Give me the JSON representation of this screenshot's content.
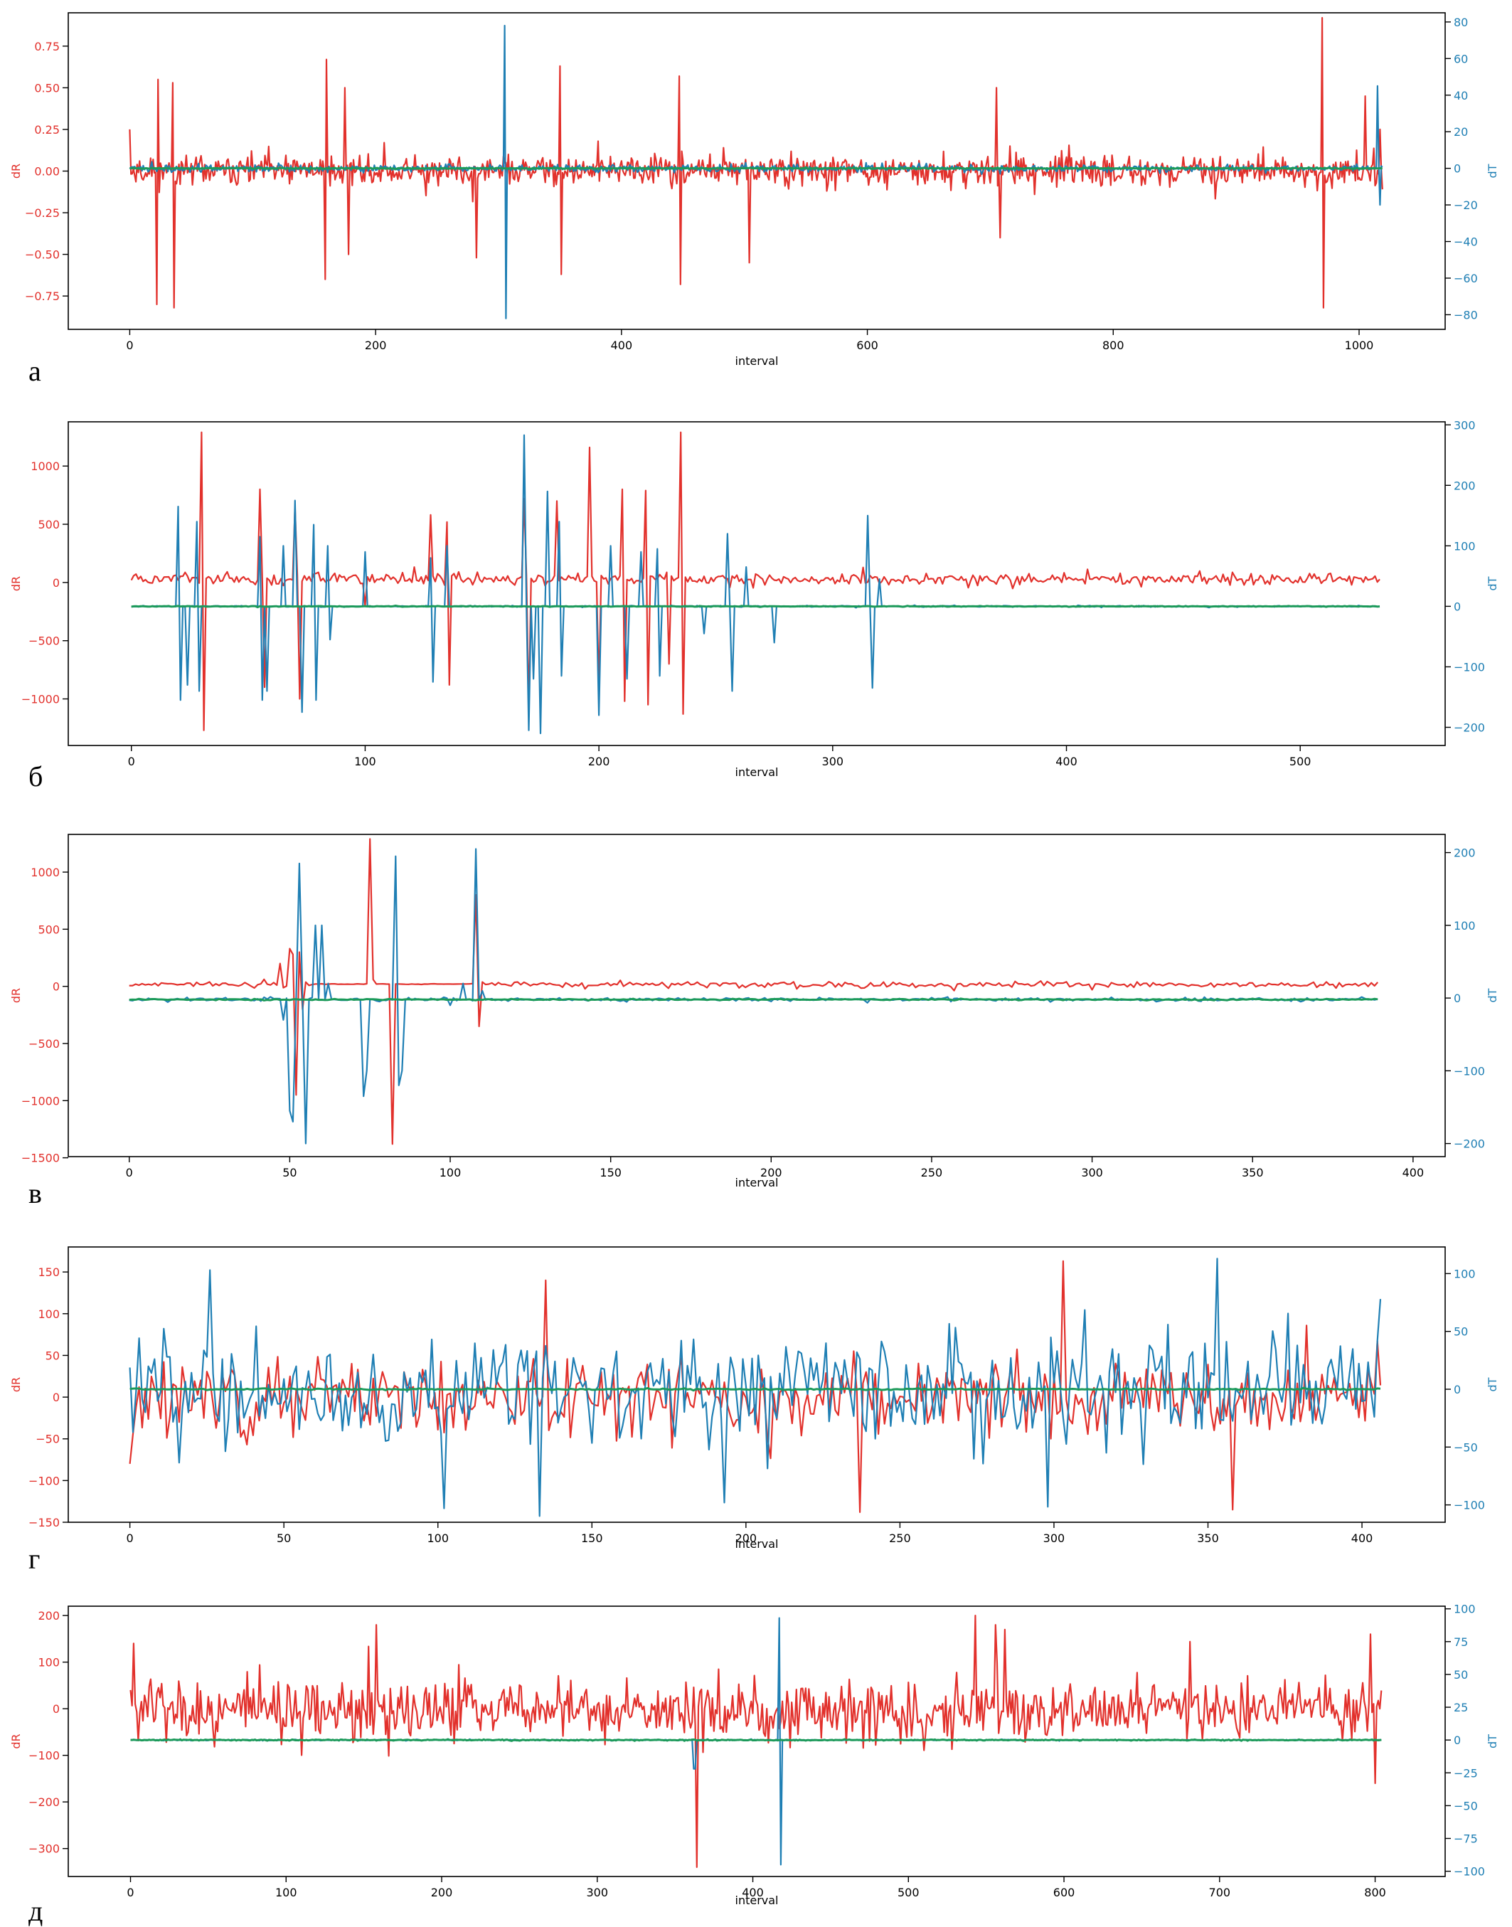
{
  "figure": {
    "description": "Five stacked dual-axis time-series plots"
  },
  "colors": {
    "dR": "#e2312c",
    "dT": "#1f7fb4",
    "zero": "#1c9a5a",
    "axis": "#000000"
  },
  "chart_data": [
    {
      "type": "line",
      "panel_label": "а",
      "xlabel": "interval",
      "ylabel_left": "dR",
      "ylabel_right": "dT",
      "xlim": [
        -50,
        1070
      ],
      "xticks": [
        0,
        200,
        400,
        600,
        800,
        1000
      ],
      "ylim_left": [
        -0.95,
        0.95
      ],
      "yticks_left": [
        -0.75,
        -0.5,
        -0.25,
        0.0,
        0.25,
        0.5,
        0.75
      ],
      "ytick_labels_left": [
        "−0.75",
        "−0.50",
        "−0.25",
        "0.00",
        "0.25",
        "0.50",
        "0.75"
      ],
      "ylim_right": [
        -88,
        85
      ],
      "yticks_right": [
        -80,
        -60,
        -40,
        -20,
        0,
        20,
        40,
        60,
        80
      ],
      "series": [
        {
          "name": "dR",
          "axis": "left",
          "n": 1020,
          "amp": 0.12,
          "seed": 11,
          "offset": 0.0,
          "spikes": [
            [
              0,
              0.25
            ],
            [
              22,
              -0.8
            ],
            [
              22.5,
              0.55
            ],
            [
              35,
              0.53
            ],
            [
              36,
              -0.82
            ],
            [
              160,
              0.67
            ],
            [
              159,
              -0.65
            ],
            [
              175,
              0.5
            ],
            [
              178,
              -0.5
            ],
            [
              282,
              -0.52
            ],
            [
              350,
              0.63
            ],
            [
              351,
              -0.62
            ],
            [
              447,
              0.57
            ],
            [
              448,
              -0.68
            ],
            [
              504,
              -0.55
            ],
            [
              705,
              0.5
            ],
            [
              708,
              -0.4
            ],
            [
              970,
              0.92
            ],
            [
              971,
              -0.82
            ],
            [
              1017,
              0.25
            ],
            [
              1005,
              0.45
            ]
          ]
        },
        {
          "name": "dT",
          "axis": "right",
          "n": 1020,
          "amp": 2.5,
          "seed": 22,
          "offset": 0.0,
          "spikes": [
            [
              305,
              78
            ],
            [
              306,
              -82
            ],
            [
              1015,
              45
            ],
            [
              1017,
              -20
            ]
          ]
        },
        {
          "name": "zero",
          "axis": "right",
          "n": 1020,
          "amp": 0.4,
          "seed": 33,
          "offset": 0.0,
          "spikes": []
        }
      ]
    },
    {
      "type": "line",
      "panel_label": "б",
      "xlabel": "interval",
      "ylabel_left": "dR",
      "ylabel_right": "dT",
      "xlim": [
        -27,
        562
      ],
      "xticks": [
        0,
        100,
        200,
        300,
        400,
        500
      ],
      "ylim_left": [
        -1400,
        1380
      ],
      "yticks_left": [
        -1000,
        -500,
        0,
        500,
        1000
      ],
      "ytick_labels_left": [
        "−1000",
        "−500",
        "0",
        "500",
        "1000"
      ],
      "ylim_right": [
        -230,
        305
      ],
      "yticks_right": [
        -200,
        -100,
        0,
        100,
        200,
        300
      ],
      "series": [
        {
          "name": "dR",
          "axis": "left",
          "n": 535,
          "amp": 70,
          "seed": 44,
          "offset": 30,
          "spikes": [
            [
              30,
              1290
            ],
            [
              31,
              -1270
            ],
            [
              55,
              800
            ],
            [
              57,
              -900
            ],
            [
              70,
              650
            ],
            [
              72,
              -1000
            ],
            [
              100,
              -200
            ],
            [
              128,
              580
            ],
            [
              135,
              520
            ],
            [
              136,
              -880
            ],
            [
              168,
              720
            ],
            [
              170,
              -1100
            ],
            [
              182,
              700
            ],
            [
              196,
              1160
            ],
            [
              200,
              -900
            ],
            [
              210,
              800
            ],
            [
              211,
              -1020
            ],
            [
              220,
              790
            ],
            [
              221,
              -1050
            ],
            [
              235,
              1290
            ],
            [
              236,
              -1130
            ],
            [
              230,
              -700
            ]
          ]
        },
        {
          "name": "dT",
          "axis": "right",
          "n": 535,
          "amp": 1.5,
          "seed": 55,
          "offset": 0,
          "spikes": [
            [
              20,
              165
            ],
            [
              21,
              -155
            ],
            [
              24,
              -130
            ],
            [
              28,
              140
            ],
            [
              29,
              -140
            ],
            [
              55,
              115
            ],
            [
              56,
              -155
            ],
            [
              58,
              -140
            ],
            [
              65,
              100
            ],
            [
              70,
              175
            ],
            [
              73,
              -175
            ],
            [
              78,
              135
            ],
            [
              79,
              -155
            ],
            [
              84,
              100
            ],
            [
              85,
              -55
            ],
            [
              100,
              90
            ],
            [
              128,
              80
            ],
            [
              129,
              -125
            ],
            [
              135,
              100
            ],
            [
              168,
              283
            ],
            [
              170,
              -205
            ],
            [
              172,
              -120
            ],
            [
              175,
              -210
            ],
            [
              178,
              190
            ],
            [
              183,
              140
            ],
            [
              184,
              -115
            ],
            [
              200,
              -180
            ],
            [
              205,
              100
            ],
            [
              212,
              -120
            ],
            [
              218,
              90
            ],
            [
              225,
              95
            ],
            [
              226,
              -115
            ],
            [
              245,
              -45
            ],
            [
              255,
              120
            ],
            [
              257,
              -140
            ],
            [
              263,
              65
            ],
            [
              275,
              -60
            ],
            [
              315,
              150
            ],
            [
              317,
              -135
            ],
            [
              320,
              45
            ]
          ]
        },
        {
          "name": "zero",
          "axis": "right",
          "n": 535,
          "amp": 0.8,
          "seed": 66,
          "offset": 0,
          "spikes": []
        }
      ]
    },
    {
      "type": "line",
      "panel_label": "в",
      "xlabel": "interval",
      "ylabel_left": "dR",
      "ylabel_right": "dT",
      "xlim": [
        -19,
        410
      ],
      "xticks": [
        0,
        50,
        100,
        150,
        200,
        250,
        300,
        350,
        400
      ],
      "ylim_left": [
        -1490,
        1330
      ],
      "yticks_left": [
        -1500,
        -1000,
        -500,
        0,
        500,
        1000
      ],
      "ytick_labels_left": [
        "−1500",
        "−1000",
        "−500",
        "0",
        "500",
        "1000"
      ],
      "ylim_right": [
        -218,
        225
      ],
      "yticks_right": [
        -200,
        -100,
        0,
        100,
        200
      ],
      "series": [
        {
          "name": "dR",
          "axis": "left",
          "n": 390,
          "amp": 35,
          "seed": 77,
          "offset": 15,
          "spikes": [
            [
              47,
              200
            ],
            [
              50,
              330
            ],
            [
              51,
              280
            ],
            [
              52,
              -950
            ],
            [
              53,
              300
            ],
            [
              54,
              -200
            ],
            [
              75,
              1290
            ],
            [
              76,
              60
            ],
            [
              82,
              -1380
            ],
            [
              108,
              800
            ],
            [
              109,
              -350
            ]
          ],
          "flat": [
            [
              58,
              108,
              20
            ]
          ]
        },
        {
          "name": "dT",
          "axis": "right",
          "n": 390,
          "amp": 3.5,
          "seed": 88,
          "offset": -2,
          "spikes": [
            [
              48,
              -30
            ],
            [
              50,
              -155
            ],
            [
              51,
              -170
            ],
            [
              53,
              185
            ],
            [
              55,
              -200
            ],
            [
              58,
              100
            ],
            [
              60,
              100
            ],
            [
              62,
              20
            ],
            [
              73,
              -135
            ],
            [
              74,
              -100
            ],
            [
              83,
              195
            ],
            [
              84,
              -120
            ],
            [
              85,
              -100
            ],
            [
              100,
              -10
            ],
            [
              104,
              20
            ],
            [
              108,
              205
            ],
            [
              110,
              10
            ]
          ]
        },
        {
          "name": "zero",
          "axis": "right",
          "n": 390,
          "amp": 1.2,
          "seed": 99,
          "offset": -2,
          "spikes": []
        }
      ]
    },
    {
      "type": "line",
      "panel_label": "г",
      "xlabel": "interval",
      "ylabel_left": "dR",
      "ylabel_right": "dT",
      "xlim": [
        -20,
        427
      ],
      "xticks": [
        0,
        50,
        100,
        150,
        200,
        250,
        300,
        350,
        400
      ],
      "ylim_left": [
        -150,
        180
      ],
      "yticks_left": [
        -150,
        -100,
        -50,
        0,
        50,
        100,
        150
      ],
      "ytick_labels_left": [
        "−150",
        "−100",
        "−50",
        "0",
        "50",
        "100",
        "150"
      ],
      "ylim_right": [
        -115,
        123
      ],
      "yticks_right": [
        -100,
        -50,
        0,
        50,
        100
      ],
      "series": [
        {
          "name": "dR",
          "axis": "left",
          "n": 407,
          "amp": 65,
          "seed": 111,
          "offset": 0,
          "spikes": [
            [
              0,
              -80
            ],
            [
              135,
              140
            ],
            [
              237,
              -138
            ],
            [
              303,
              163
            ],
            [
              358,
              -135
            ]
          ]
        },
        {
          "name": "dT",
          "axis": "right",
          "n": 407,
          "amp": 70,
          "seed": 222,
          "offset": 0,
          "spikes": [
            [
              26,
              103
            ],
            [
              102,
              -103
            ],
            [
              193,
              -98
            ],
            [
              353,
              113
            ],
            [
              406,
              78
            ]
          ]
        },
        {
          "name": "zero",
          "axis": "right",
          "n": 407,
          "amp": 0.8,
          "seed": 333,
          "offset": 0,
          "spikes": []
        }
      ]
    },
    {
      "type": "line",
      "panel_label": "д",
      "xlabel": "interval",
      "ylabel_left": "dR",
      "ylabel_right": "dT",
      "xlim": [
        -40,
        845
      ],
      "xticks": [
        0,
        100,
        200,
        300,
        400,
        500,
        600,
        700,
        800
      ],
      "ylim_left": [
        -360,
        220
      ],
      "yticks_left": [
        -300,
        -200,
        -100,
        0,
        100,
        200
      ],
      "ytick_labels_left": [
        "−300",
        "−200",
        "−100",
        "0",
        "100",
        "200"
      ],
      "ylim_right": [
        -104,
        102
      ],
      "yticks_right": [
        -100,
        -75,
        -50,
        -25,
        0,
        25,
        50,
        75,
        100
      ],
      "series": [
        {
          "name": "dR",
          "axis": "left",
          "n": 805,
          "amp": 90,
          "seed": 444,
          "offset": 0,
          "spikes": [
            [
              0,
              40
            ],
            [
              2,
              140
            ],
            [
              158,
              180
            ],
            [
              364,
              -340
            ],
            [
              543,
              200
            ],
            [
              556,
              180
            ],
            [
              562,
              170
            ],
            [
              797,
              160
            ],
            [
              800,
              -160
            ]
          ]
        },
        {
          "name": "dT",
          "axis": "right",
          "n": 805,
          "amp": 0.5,
          "seed": 555,
          "offset": 0,
          "spikes": [
            [
              362,
              -22
            ],
            [
              363,
              -22
            ],
            [
              417,
              93
            ],
            [
              418,
              -95
            ]
          ]
        },
        {
          "name": "zero",
          "axis": "right",
          "n": 805,
          "amp": 0.5,
          "seed": 666,
          "offset": 0,
          "spikes": []
        }
      ]
    }
  ]
}
